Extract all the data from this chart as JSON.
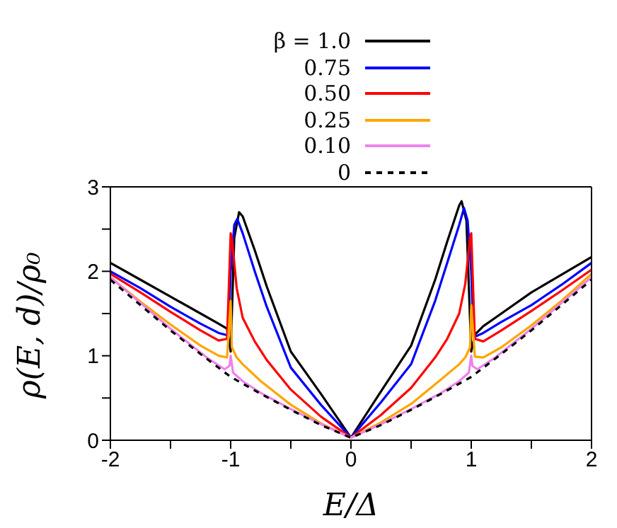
{
  "chart_data": {
    "type": "line",
    "xlabel": "E/Δ",
    "ylabel": "ρ(E, d)/ρ₀",
    "xlim": [
      -2,
      2
    ],
    "xticks": [
      -2,
      {
        "value": -1.5,
        "label": null
      },
      -1,
      {
        "value": -0.5,
        "label": null
      },
      0,
      {
        "value": 0.5,
        "label": null
      },
      1,
      {
        "value": 1.5,
        "label": null
      },
      2
    ],
    "ylim": [
      0,
      3
    ],
    "yticks": [
      0,
      {
        "value": 0.5,
        "label": null
      },
      1,
      {
        "value": 1.5,
        "label": null
      },
      2,
      {
        "value": 2.5,
        "label": null
      },
      3
    ],
    "grid": false,
    "legend": "top",
    "marker": "none",
    "series": [
      {
        "name": "β = 1.0",
        "color": "#000000",
        "x": [
          -2,
          -1.75,
          -1.5,
          -1.25,
          -1.1,
          -1.03,
          -1.0,
          -0.97,
          -0.93,
          -0.9,
          -0.8,
          -0.7,
          -0.5,
          -0.25,
          0,
          0.25,
          0.5,
          0.7,
          0.8,
          0.9,
          0.92,
          0.96,
          1.0,
          1.03,
          1.1,
          1.25,
          1.5,
          1.75,
          2
        ],
        "values": [
          2.1,
          1.9,
          1.7,
          1.5,
          1.38,
          1.32,
          1.05,
          2.4,
          2.7,
          2.65,
          2.25,
          1.82,
          1.05,
          0.55,
          0.03,
          0.58,
          1.12,
          1.9,
          2.35,
          2.78,
          2.83,
          2.6,
          1.05,
          1.25,
          1.35,
          1.5,
          1.75,
          1.96,
          2.17
        ]
      },
      {
        "name": "0.75",
        "color": "#0000ff",
        "x": [
          -2,
          -1.75,
          -1.5,
          -1.25,
          -1.1,
          -1.02,
          -1.0,
          -0.97,
          -0.945,
          -0.9,
          -0.8,
          -0.7,
          -0.5,
          -0.25,
          0,
          0.25,
          0.5,
          0.7,
          0.8,
          0.9,
          0.94,
          0.97,
          1.0,
          1.02,
          1.1,
          1.25,
          1.5,
          1.75,
          2
        ],
        "values": [
          2.0,
          1.8,
          1.58,
          1.38,
          1.27,
          1.24,
          2.0,
          2.55,
          2.62,
          2.45,
          2.0,
          1.58,
          0.86,
          0.42,
          0.03,
          0.45,
          0.9,
          1.65,
          2.1,
          2.55,
          2.75,
          2.6,
          2.0,
          1.22,
          1.27,
          1.4,
          1.6,
          1.84,
          2.1
        ]
      },
      {
        "name": "0.50",
        "color": "#ff0000",
        "x": [
          -2,
          -1.75,
          -1.5,
          -1.25,
          -1.1,
          -1.03,
          -1.0,
          -0.99,
          -0.95,
          -0.9,
          -0.8,
          -0.7,
          -0.5,
          -0.25,
          0,
          0.25,
          0.5,
          0.7,
          0.8,
          0.9,
          0.95,
          0.99,
          1.0,
          1.03,
          1.1,
          1.25,
          1.5,
          1.75,
          2
        ],
        "values": [
          1.97,
          1.75,
          1.52,
          1.3,
          1.18,
          1.2,
          2.45,
          2.4,
          1.8,
          1.45,
          1.17,
          0.95,
          0.6,
          0.28,
          0.03,
          0.3,
          0.62,
          0.98,
          1.2,
          1.5,
          1.85,
          2.4,
          2.45,
          1.2,
          1.17,
          1.3,
          1.53,
          1.77,
          2.02
        ]
      },
      {
        "name": "0.25",
        "color": "#ffa500",
        "x": [
          -2,
          -1.75,
          -1.5,
          -1.25,
          -1.1,
          -1.03,
          -1.0,
          -0.99,
          -0.95,
          -0.9,
          -0.75,
          -0.5,
          -0.25,
          0,
          0.25,
          0.5,
          0.75,
          0.9,
          0.95,
          0.99,
          1.0,
          1.03,
          1.1,
          1.25,
          1.5,
          1.75,
          2
        ],
        "values": [
          1.93,
          1.64,
          1.37,
          1.12,
          1.0,
          0.98,
          1.65,
          1.1,
          0.98,
          0.9,
          0.7,
          0.42,
          0.2,
          0.03,
          0.21,
          0.43,
          0.72,
          0.9,
          0.98,
          1.1,
          1.6,
          0.99,
          0.98,
          1.1,
          1.36,
          1.65,
          1.97
        ]
      },
      {
        "name": "0.10",
        "color": "#ee82ee",
        "x": [
          -2,
          -1.5,
          -1.2,
          -1.05,
          -1.01,
          -1.0,
          -0.98,
          -0.9,
          -0.75,
          -0.5,
          -0.25,
          0,
          0.25,
          0.5,
          0.75,
          0.9,
          0.98,
          1.0,
          1.01,
          1.05,
          1.2,
          1.5,
          2
        ],
        "values": [
          1.93,
          1.32,
          0.98,
          0.84,
          0.88,
          1.0,
          0.8,
          0.7,
          0.56,
          0.37,
          0.19,
          0.03,
          0.19,
          0.37,
          0.56,
          0.7,
          0.8,
          1.0,
          0.88,
          0.84,
          0.98,
          1.32,
          1.93
        ]
      },
      {
        "name": "0",
        "color": "#000000",
        "line_style": "dashed",
        "x": [
          -2,
          -1.75,
          -1.5,
          -1.25,
          -1,
          -0.75,
          -0.5,
          -0.25,
          0,
          0.25,
          0.5,
          0.75,
          1,
          1.25,
          1.5,
          1.75,
          2
        ],
        "values": [
          1.9,
          1.6,
          1.3,
          1.02,
          0.75,
          0.55,
          0.36,
          0.18,
          0.03,
          0.18,
          0.36,
          0.55,
          0.75,
          1.02,
          1.3,
          1.6,
          1.9
        ]
      }
    ]
  }
}
